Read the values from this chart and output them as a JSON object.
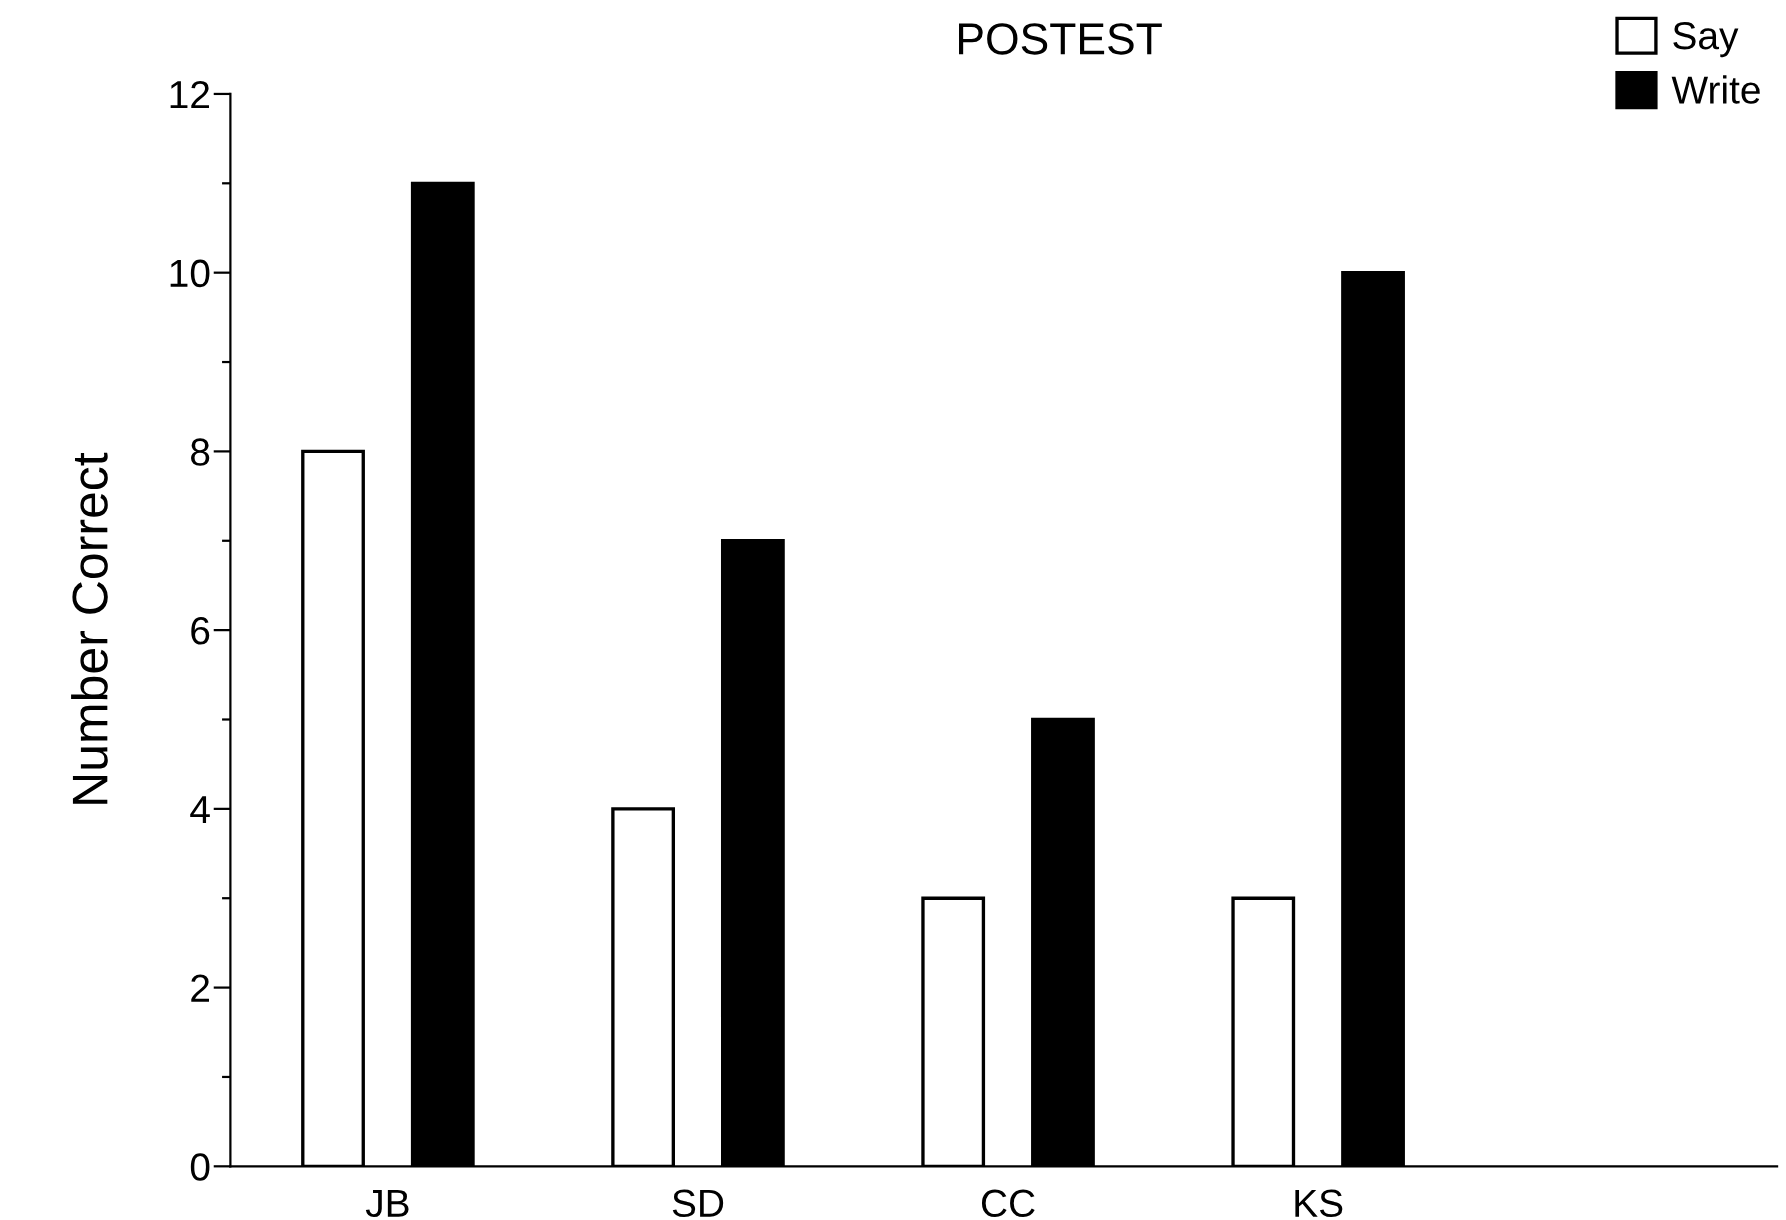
{
  "chart_data": {
    "type": "bar",
    "title": "POSTEST",
    "ylabel": "Number Correct",
    "categories": [
      "JB",
      "SD",
      "CC",
      "KS"
    ],
    "series": [
      {
        "name": "Say",
        "color": "#ffffff",
        "values": [
          8,
          4,
          3,
          3
        ]
      },
      {
        "name": "Write",
        "color": "#000000",
        "values": [
          11,
          7,
          5,
          10
        ]
      }
    ],
    "ylim": [
      0,
      12
    ],
    "yticks": [
      0,
      {
        "value": 1,
        "label": null
      },
      2,
      {
        "value": 3,
        "label": null
      },
      4,
      {
        "value": 5,
        "label": null
      },
      6,
      {
        "value": 7,
        "label": null
      },
      8,
      {
        "value": 9,
        "label": null
      },
      10,
      {
        "value": 11,
        "label": null
      },
      12
    ],
    "grid": false,
    "legend": "top right"
  }
}
